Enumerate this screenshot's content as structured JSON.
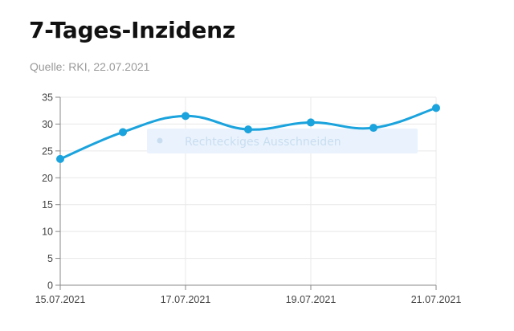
{
  "header": {
    "title": "7-Tages-Inzidenz",
    "source": "Quelle: RKI, 22.07.2021"
  },
  "overlay": {
    "label": "Rechteckiges Ausschneiden",
    "icon": "record-dot-icon",
    "color": "#eaf3fd",
    "text_color": "#c8ddf0"
  },
  "chart_data": {
    "type": "line",
    "title": "7-Tages-Inzidenz",
    "x": [
      "15.07.2021",
      "16.07.2021",
      "17.07.2021",
      "18.07.2021",
      "19.07.2021",
      "20.07.2021",
      "21.07.2021"
    ],
    "x_tick_labels": [
      "15.07.2021",
      "",
      "17.07.2021",
      "",
      "19.07.2021",
      "",
      "21.07.2021"
    ],
    "series": [
      {
        "values": [
          23.5,
          28.5,
          31.5,
          29.0,
          30.3,
          29.3,
          33.0
        ],
        "color": "#1aa3dd"
      }
    ],
    "ylim": [
      0,
      35
    ],
    "y_ticks": [
      0,
      5,
      10,
      15,
      20,
      25,
      30,
      35
    ],
    "xlabel": "",
    "ylabel": "",
    "grid": true,
    "grid_color": "#e8e8e8",
    "axis_color": "#888888"
  }
}
